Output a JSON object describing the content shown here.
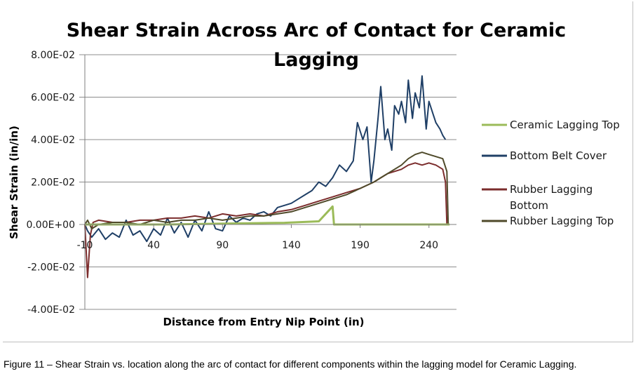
{
  "chart_data": {
    "type": "line",
    "title_lines": [
      "Shear Strain Across Arc of Contact for Ceramic",
      "Lagging"
    ],
    "xlabel": "Distance from Entry Nip Point (in)",
    "ylabel": "Shear Strain (in/in)",
    "xlim": [
      -10,
      260
    ],
    "ylim": [
      -0.04,
      0.08
    ],
    "y_ticks": [
      0.08,
      0.06,
      0.04,
      0.02,
      0,
      -0.02,
      -0.04
    ],
    "y_tick_labels": [
      "8.00E-02",
      "6.00E-02",
      "4.00E-02",
      "2.00E-02",
      "0.00E+00",
      "-2.00E-02",
      "-4.00E-02"
    ],
    "x_ticks": [
      -10,
      40,
      90,
      140,
      190,
      240
    ],
    "x_tick_labels": [
      "-10",
      "40",
      "90",
      "140",
      "190",
      "240"
    ],
    "legend_position": "right",
    "series": [
      {
        "name": "Ceramic Lagging Top",
        "color": "#9bbb59",
        "x": [
          -10,
          0,
          50,
          100,
          135,
          160,
          170,
          171,
          172,
          200,
          250,
          255
        ],
        "y": [
          0,
          0.0,
          0.0,
          0.0005,
          0.0008,
          0.0015,
          0.0085,
          0.0,
          0.0,
          0.0,
          0.0,
          0.0
        ]
      },
      {
        "name": "Bottom Belt Cover",
        "color": "#1f3f66",
        "x": [
          -10,
          -8,
          -5,
          0,
          5,
          10,
          15,
          20,
          25,
          30,
          35,
          40,
          45,
          50,
          55,
          60,
          65,
          70,
          75,
          80,
          85,
          90,
          95,
          100,
          105,
          110,
          115,
          120,
          125,
          130,
          135,
          140,
          145,
          150,
          155,
          160,
          165,
          170,
          175,
          180,
          185,
          188,
          192,
          195,
          198,
          200,
          203,
          205,
          208,
          210,
          213,
          215,
          218,
          220,
          223,
          225,
          228,
          230,
          233,
          235,
          238,
          240,
          243,
          245,
          248,
          250,
          252
        ],
        "y": [
          0,
          -0.003,
          -0.006,
          -0.002,
          -0.007,
          -0.004,
          -0.006,
          0.002,
          -0.005,
          -0.003,
          -0.008,
          -0.002,
          -0.005,
          0.003,
          -0.004,
          0.001,
          -0.006,
          0.002,
          -0.003,
          0.006,
          -0.002,
          -0.003,
          0.004,
          0.001,
          0.003,
          0.002,
          0.005,
          0.006,
          0.004,
          0.008,
          0.009,
          0.01,
          0.012,
          0.014,
          0.016,
          0.02,
          0.018,
          0.022,
          0.028,
          0.025,
          0.03,
          0.048,
          0.04,
          0.046,
          0.02,
          0.03,
          0.05,
          0.065,
          0.04,
          0.045,
          0.035,
          0.056,
          0.052,
          0.058,
          0.048,
          0.068,
          0.05,
          0.062,
          0.055,
          0.07,
          0.045,
          0.058,
          0.052,
          0.048,
          0.045,
          0.042,
          0.04
        ]
      },
      {
        "name": "Rubber Lagging Bottom",
        "color": "#7b2c2c",
        "x": [
          -10,
          -8,
          -6,
          -4,
          0,
          10,
          20,
          30,
          40,
          50,
          60,
          70,
          80,
          90,
          100,
          110,
          120,
          130,
          140,
          150,
          160,
          170,
          180,
          190,
          200,
          210,
          220,
          225,
          230,
          235,
          240,
          245,
          250,
          252,
          253
        ],
        "y": [
          0,
          -0.025,
          -0.005,
          0.001,
          0.002,
          0.001,
          0.001,
          0.002,
          0.002,
          0.003,
          0.003,
          0.004,
          0.003,
          0.005,
          0.004,
          0.005,
          0.004,
          0.006,
          0.007,
          0.009,
          0.011,
          0.013,
          0.015,
          0.017,
          0.02,
          0.024,
          0.026,
          0.028,
          0.029,
          0.028,
          0.029,
          0.028,
          0.026,
          0.02,
          0.0
        ]
      },
      {
        "name": "Rubber Lagging Top",
        "color": "#4f4a2a",
        "x": [
          -10,
          -8,
          -5,
          0,
          10,
          20,
          30,
          40,
          50,
          60,
          70,
          80,
          90,
          100,
          110,
          120,
          130,
          140,
          150,
          160,
          170,
          180,
          190,
          200,
          205,
          210,
          220,
          225,
          230,
          235,
          240,
          245,
          250,
          253,
          254
        ],
        "y": [
          0,
          0.002,
          -0.002,
          0.0,
          0.001,
          0.001,
          0.0,
          0.002,
          0.001,
          0.002,
          0.002,
          0.003,
          0.002,
          0.003,
          0.004,
          0.004,
          0.005,
          0.006,
          0.008,
          0.01,
          0.012,
          0.014,
          0.017,
          0.02,
          0.022,
          0.024,
          0.028,
          0.031,
          0.033,
          0.034,
          0.033,
          0.032,
          0.031,
          0.025,
          0.0
        ]
      }
    ]
  },
  "caption": "Figure 11 – Shear Strain vs. location along the arc of contact for different components within the lagging model for Ceramic Lagging."
}
